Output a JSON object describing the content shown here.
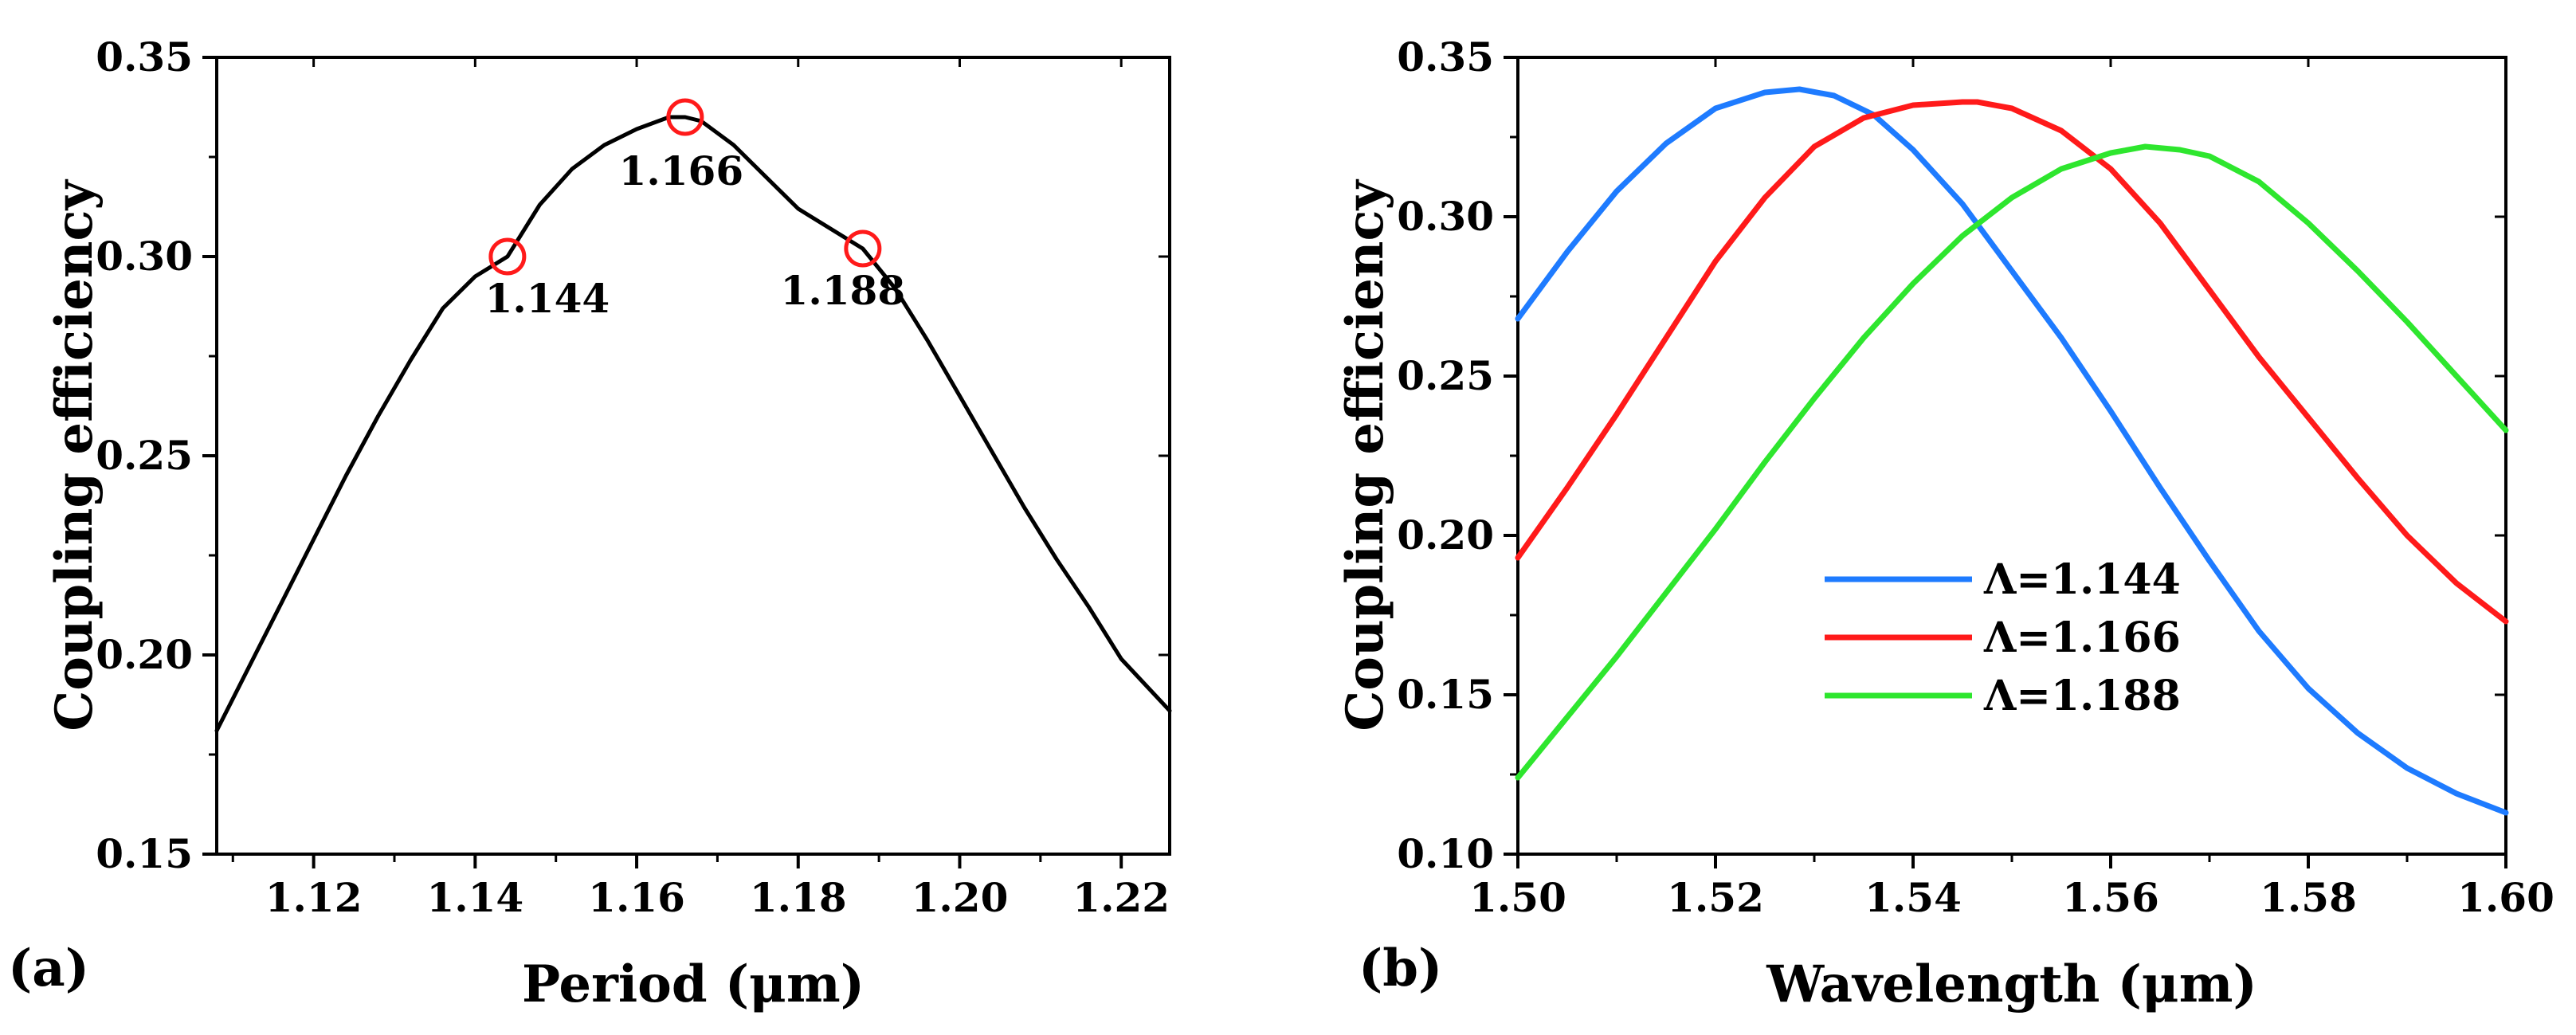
{
  "chart_data": [
    {
      "type": "line",
      "panel_label": "(a)",
      "xlabel": "Period (μm)",
      "ylabel": "Coupling efficiency",
      "xlim": [
        1.108,
        1.226
      ],
      "ylim": [
        0.15,
        0.35
      ],
      "xticks": [
        "1.12",
        "1.14",
        "1.16",
        "1.18",
        "1.20",
        "1.22"
      ],
      "yticks": [
        "0.15",
        "0.20",
        "0.25",
        "0.30",
        "0.35"
      ],
      "grid": false,
      "series": [
        {
          "color": "#000000",
          "x": [
            1.108,
            1.112,
            1.116,
            1.12,
            1.124,
            1.128,
            1.132,
            1.136,
            1.14,
            1.144,
            1.148,
            1.152,
            1.156,
            1.16,
            1.164,
            1.166,
            1.168,
            1.172,
            1.176,
            1.18,
            1.184,
            1.188,
            1.192,
            1.196,
            1.2,
            1.204,
            1.208,
            1.212,
            1.216,
            1.22,
            1.226
          ],
          "y": [
            0.181,
            0.197,
            0.213,
            0.229,
            0.245,
            0.26,
            0.274,
            0.287,
            0.295,
            0.3,
            0.313,
            0.322,
            0.328,
            0.332,
            0.335,
            0.335,
            0.334,
            0.328,
            0.32,
            0.312,
            0.307,
            0.302,
            0.292,
            0.279,
            0.265,
            0.251,
            0.237,
            0.224,
            0.212,
            0.199,
            0.186
          ]
        }
      ],
      "markers": [
        {
          "x": 1.144,
          "y": 0.3,
          "label": "1.144",
          "color": "#ff1a1a"
        },
        {
          "x": 1.166,
          "y": 0.335,
          "label": "1.166",
          "color": "#ff1a1a"
        },
        {
          "x": 1.188,
          "y": 0.302,
          "label": "1.188",
          "color": "#ff1a1a"
        }
      ]
    },
    {
      "type": "line",
      "panel_label": "(b)",
      "xlabel": "Wavelength (μm)",
      "ylabel": "Coupling efficiency",
      "xlim": [
        1.5,
        1.6
      ],
      "ylim": [
        0.1,
        0.35
      ],
      "xticks": [
        "1.50",
        "1.52",
        "1.54",
        "1.56",
        "1.58",
        "1.60"
      ],
      "yticks": [
        "0.10",
        "0.15",
        "0.20",
        "0.25",
        "0.30",
        "0.35"
      ],
      "grid": false,
      "legend_position": "center-right",
      "series": [
        {
          "name": "Λ=1.144",
          "color": "#1e7bff",
          "x": [
            1.5,
            1.505,
            1.51,
            1.515,
            1.52,
            1.525,
            1.5285,
            1.532,
            1.536,
            1.54,
            1.545,
            1.55,
            1.555,
            1.56,
            1.565,
            1.57,
            1.575,
            1.58,
            1.585,
            1.59,
            1.595,
            1.6
          ],
          "y": [
            0.268,
            0.289,
            0.308,
            0.323,
            0.334,
            0.339,
            0.34,
            0.338,
            0.332,
            0.321,
            0.304,
            0.283,
            0.262,
            0.239,
            0.215,
            0.192,
            0.17,
            0.152,
            0.138,
            0.127,
            0.119,
            0.113
          ]
        },
        {
          "name": "Λ=1.166",
          "color": "#ff1a1a",
          "x": [
            1.5,
            1.505,
            1.51,
            1.515,
            1.52,
            1.525,
            1.53,
            1.535,
            1.54,
            1.545,
            1.5465,
            1.55,
            1.555,
            1.56,
            1.565,
            1.57,
            1.575,
            1.58,
            1.585,
            1.59,
            1.595,
            1.6
          ],
          "y": [
            0.193,
            0.215,
            0.238,
            0.262,
            0.286,
            0.306,
            0.322,
            0.331,
            0.335,
            0.336,
            0.336,
            0.334,
            0.327,
            0.315,
            0.298,
            0.277,
            0.256,
            0.237,
            0.218,
            0.2,
            0.185,
            0.173
          ]
        },
        {
          "name": "Λ=1.188",
          "color": "#2ee62e",
          "x": [
            1.5,
            1.505,
            1.51,
            1.515,
            1.52,
            1.525,
            1.53,
            1.535,
            1.54,
            1.545,
            1.55,
            1.555,
            1.56,
            1.5635,
            1.567,
            1.57,
            1.575,
            1.58,
            1.585,
            1.59,
            1.595,
            1.6
          ],
          "y": [
            0.124,
            0.143,
            0.162,
            0.182,
            0.202,
            0.223,
            0.243,
            0.262,
            0.279,
            0.294,
            0.306,
            0.315,
            0.32,
            0.322,
            0.321,
            0.319,
            0.311,
            0.298,
            0.283,
            0.267,
            0.25,
            0.233
          ]
        }
      ]
    }
  ]
}
